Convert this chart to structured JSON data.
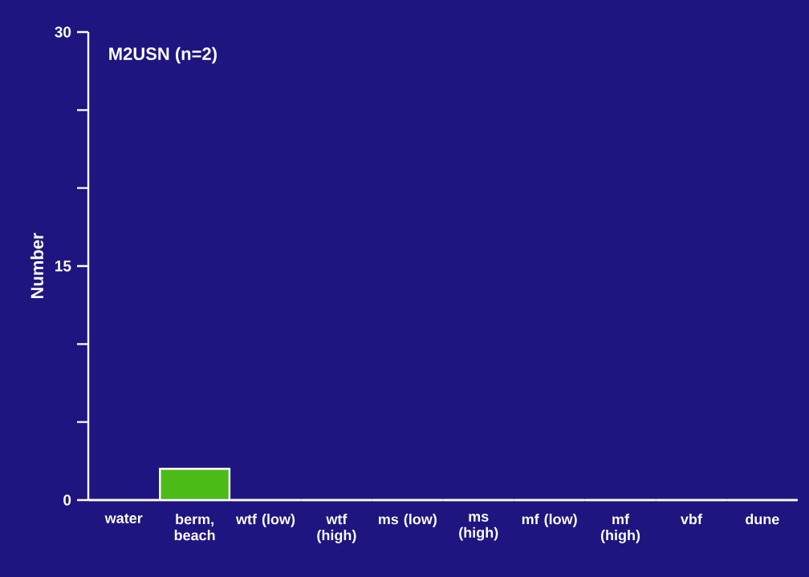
{
  "chart_data": {
    "type": "bar",
    "title": "M2USN (n=2)",
    "ylabel": "Number",
    "categories": [
      "water",
      "berm, beach",
      "wtf (low)",
      "wtf (high)",
      "ms (low)",
      "ms (high)",
      "mf (low)",
      "mf (high)",
      "vbf",
      "dune"
    ],
    "values": [
      0,
      2,
      0,
      0,
      0,
      0,
      0,
      0,
      0,
      0
    ],
    "color": "#4cbb17",
    "ylim": [
      0,
      30
    ],
    "yticks": [
      0,
      {
        "value": 5,
        "label": null
      },
      {
        "value": 10,
        "label": null
      },
      15,
      {
        "value": 20,
        "label": null
      },
      {
        "value": 25,
        "label": null
      },
      30
    ]
  }
}
